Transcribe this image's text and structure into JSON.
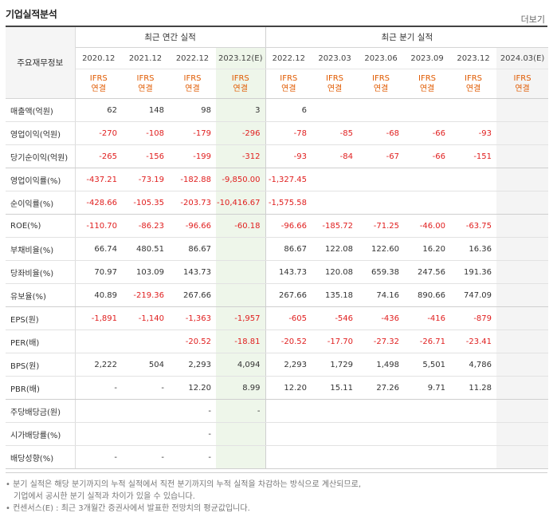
{
  "header": {
    "title": "기업실적분석",
    "more_label": "더보기"
  },
  "table": {
    "label_header": "주요재무정보",
    "annual_group": "최근 연간 실적",
    "quarter_group": "최근 분기 실적",
    "annual_periods": [
      "2020.12",
      "2021.12",
      "2022.12",
      "2023.12(E)"
    ],
    "quarter_periods": [
      "2022.12",
      "2023.03",
      "2023.06",
      "2023.09",
      "2023.12",
      "2024.03(E)"
    ],
    "report_line1": "IFRS",
    "report_line2": "연결",
    "rows": [
      {
        "label": "매출액(억원)",
        "values": [
          "62",
          "148",
          "98",
          "3",
          "6",
          "",
          "",
          "",
          "",
          ""
        ]
      },
      {
        "label": "영업이익(억원)",
        "values": [
          "-270",
          "-108",
          "-179",
          "-296",
          "-78",
          "-85",
          "-68",
          "-66",
          "-93",
          ""
        ]
      },
      {
        "label": "당기순이익(억원)",
        "values": [
          "-265",
          "-156",
          "-199",
          "-312",
          "-93",
          "-84",
          "-67",
          "-66",
          "-151",
          ""
        ]
      },
      {
        "label": "영업이익률(%)",
        "values": [
          "-437.21",
          "-73.19",
          "-182.88",
          "-9,850.00",
          "-1,327.45",
          "",
          "",
          "",
          "",
          ""
        ]
      },
      {
        "label": "순이익률(%)",
        "values": [
          "-428.66",
          "-105.35",
          "-203.73",
          "-10,416.67",
          "-1,575.58",
          "",
          "",
          "",
          "",
          ""
        ]
      },
      {
        "label": "ROE(%)",
        "values": [
          "-110.70",
          "-86.23",
          "-96.66",
          "-60.18",
          "-96.66",
          "-185.72",
          "-71.25",
          "-46.00",
          "-63.75",
          ""
        ]
      },
      {
        "label": "부채비율(%)",
        "values": [
          "66.74",
          "480.51",
          "86.67",
          "",
          "86.67",
          "122.08",
          "122.60",
          "16.20",
          "16.36",
          ""
        ]
      },
      {
        "label": "당좌비율(%)",
        "values": [
          "70.97",
          "103.09",
          "143.73",
          "",
          "143.73",
          "120.08",
          "659.38",
          "247.56",
          "191.36",
          ""
        ]
      },
      {
        "label": "유보율(%)",
        "values": [
          "40.89",
          "-219.36",
          "267.66",
          "",
          "267.66",
          "135.18",
          "74.16",
          "890.66",
          "747.09",
          ""
        ]
      },
      {
        "label": "EPS(원)",
        "values": [
          "-1,891",
          "-1,140",
          "-1,363",
          "-1,957",
          "-605",
          "-546",
          "-436",
          "-416",
          "-879",
          ""
        ]
      },
      {
        "label": "PER(배)",
        "values": [
          "",
          "",
          "-20.52",
          "-18.81",
          "-20.52",
          "-17.70",
          "-27.32",
          "-26.71",
          "-23.41",
          ""
        ]
      },
      {
        "label": "BPS(원)",
        "values": [
          "2,222",
          "504",
          "2,293",
          "4,094",
          "2,293",
          "1,729",
          "1,498",
          "5,501",
          "4,786",
          ""
        ]
      },
      {
        "label": "PBR(배)",
        "values": [
          "-",
          "-",
          "12.20",
          "8.99",
          "12.20",
          "15.11",
          "27.26",
          "9.71",
          "11.28",
          ""
        ]
      },
      {
        "label": "주당배당금(원)",
        "values": [
          "",
          "",
          "-",
          "-",
          "",
          "",
          "",
          "",
          "",
          ""
        ]
      },
      {
        "label": "시가배당률(%)",
        "values": [
          "",
          "",
          "-",
          "",
          "",
          "",
          "",
          "",
          "",
          ""
        ]
      },
      {
        "label": "배당성향(%)",
        "values": [
          "-",
          "-",
          "-",
          "",
          "",
          "",
          "",
          "",
          "",
          ""
        ]
      }
    ]
  },
  "notes": [
    "• 분기 실적은 해당 분기까지의 누적 실적에서 직전 분기까지의 누적 실적을 차감하는 방식으로 계산되므로,",
    "기업에서 공시한 분기 실적과 차이가 있을 수 있습니다.",
    "• 컨센서스(E) : 최근 3개월간 증권사에서 발표한 전망치의 평균값입니다."
  ],
  "colors": {
    "negative": "#e01e1e",
    "report": "#e05a00",
    "estimate_bg": "#eef6ea",
    "header_bg": "#f5f5f5"
  }
}
